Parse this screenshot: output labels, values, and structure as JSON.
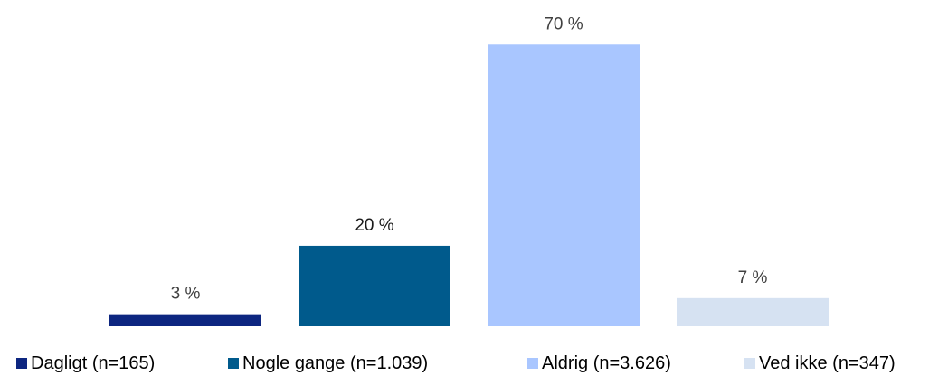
{
  "chart_data": {
    "type": "bar",
    "categories": [
      "Dagligt (n=165)",
      "Nogle gange (n=1.039)",
      "Aldrig (n=3.626)",
      "Ved ikke (n=347)"
    ],
    "values": [
      3,
      20,
      70,
      7
    ],
    "value_labels": [
      "3 %",
      "20 %",
      "70 %",
      "7 %"
    ],
    "colors": [
      "#0d2680",
      "#005a8c",
      "#a9c6ff",
      "#d6e2f2"
    ],
    "title": "",
    "xlabel": "",
    "ylabel": "",
    "ylim": [
      0,
      75
    ],
    "grid": false,
    "legend_position": "bottom"
  }
}
